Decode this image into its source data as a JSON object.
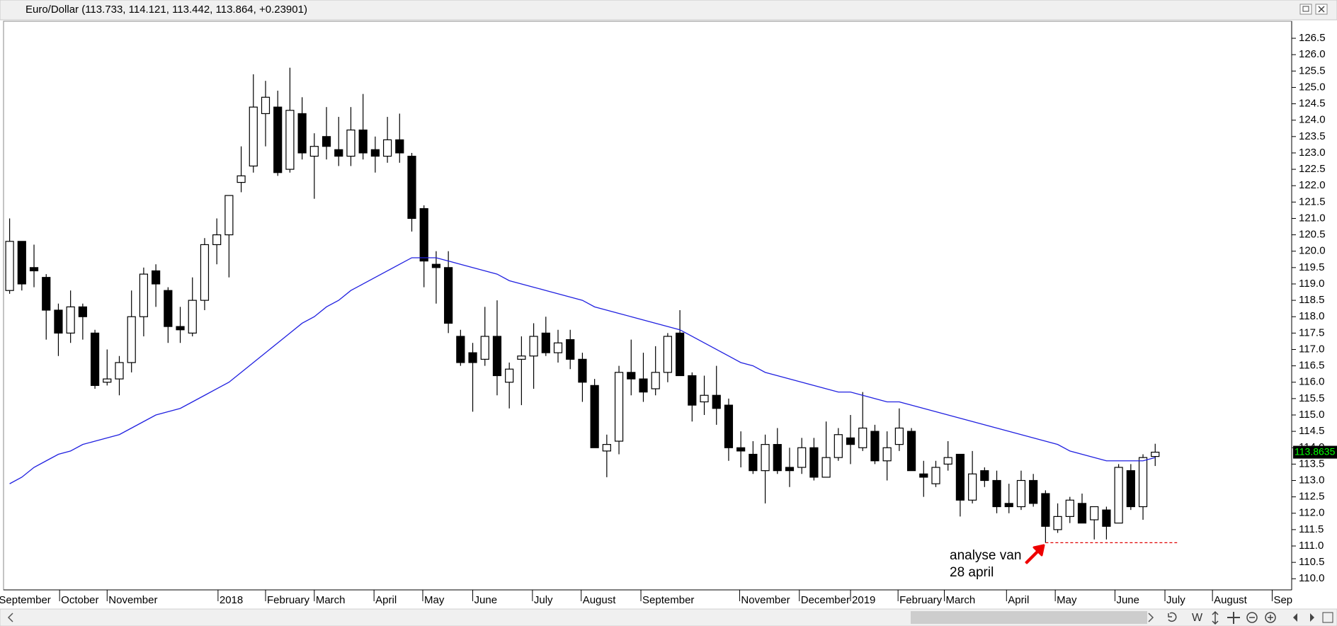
{
  "chart_data": {
    "type": "candlestick",
    "title": "Euro/Dollar (113.733, 114.121, 113.442, 113.864, +0.23901)",
    "open": [
      118.8,
      120.3,
      119.5,
      119.2,
      118.2,
      117.5,
      118.3,
      117.5,
      116.0,
      116.1,
      116.6,
      118.0,
      119.4,
      118.8,
      117.7,
      117.5,
      118.5,
      120.2,
      120.5,
      122.1,
      122.6,
      124.2,
      124.4,
      122.5,
      124.2,
      122.9,
      123.5,
      123.1,
      122.9,
      123.7,
      123.1,
      122.9,
      123.4,
      122.9,
      121.3,
      119.6,
      119.5,
      117.4,
      116.9,
      116.7,
      117.4,
      116.0,
      116.7,
      116.8,
      117.5,
      116.9,
      117.3,
      116.7,
      115.9,
      113.9,
      114.2,
      116.3,
      116.1,
      115.8,
      116.3,
      117.5,
      116.2,
      115.4,
      115.6,
      115.3,
      114.0,
      113.8,
      113.3,
      114.1,
      113.4,
      113.4,
      114.0,
      113.1,
      113.7,
      114.3,
      114.0,
      114.5,
      113.6,
      114.1,
      114.5,
      113.2,
      112.9,
      113.5,
      113.8,
      112.4,
      113.3,
      113.0,
      112.3,
      112.2,
      113.0,
      112.6,
      111.5,
      111.9,
      112.3,
      111.8,
      112.1,
      111.7,
      113.3,
      112.2,
      113.733
    ],
    "high": [
      121.0,
      120.3,
      120.2,
      119.3,
      118.4,
      118.8,
      118.4,
      117.6,
      117.0,
      116.8,
      118.8,
      119.5,
      119.6,
      118.9,
      118.3,
      119.2,
      120.4,
      121.0,
      121.7,
      123.2,
      125.4,
      125.2,
      124.9,
      125.6,
      124.7,
      123.6,
      124.4,
      124.1,
      124.4,
      124.8,
      123.5,
      124.1,
      124.2,
      123.0,
      121.4,
      120.0,
      120.0,
      117.6,
      117.2,
      118.3,
      118.5,
      116.6,
      117.4,
      117.8,
      118.0,
      117.6,
      117.6,
      116.9,
      116.1,
      114.4,
      116.5,
      117.3,
      116.9,
      117.1,
      117.5,
      118.2,
      116.3,
      116.2,
      116.5,
      115.5,
      114.5,
      114.2,
      114.4,
      114.6,
      114.0,
      114.3,
      114.3,
      114.8,
      114.6,
      115.0,
      115.7,
      114.7,
      114.5,
      115.2,
      114.6,
      113.6,
      113.6,
      114.2,
      113.8,
      113.9,
      113.4,
      113.3,
      112.9,
      113.3,
      113.2,
      112.7,
      112.3,
      112.5,
      112.6,
      112.2,
      112.2,
      113.5,
      113.5,
      113.8,
      114.121
    ],
    "low": [
      118.7,
      118.8,
      118.9,
      117.3,
      116.8,
      117.2,
      117.3,
      115.8,
      115.9,
      115.6,
      116.3,
      117.4,
      118.3,
      117.2,
      117.2,
      117.4,
      118.2,
      119.6,
      119.2,
      121.8,
      122.4,
      123.2,
      122.3,
      122.4,
      122.8,
      121.6,
      122.8,
      122.6,
      122.6,
      122.8,
      122.4,
      122.7,
      122.7,
      120.6,
      118.9,
      118.4,
      117.5,
      116.5,
      115.1,
      116.5,
      115.6,
      115.2,
      115.3,
      115.8,
      116.8,
      116.6,
      116.4,
      115.4,
      114.0,
      113.1,
      113.8,
      115.6,
      115.4,
      115.6,
      116.0,
      116.2,
      114.8,
      115.0,
      114.7,
      113.6,
      113.4,
      113.2,
      112.3,
      113.2,
      112.8,
      113.2,
      113.0,
      113.1,
      113.6,
      113.5,
      113.9,
      113.5,
      113.0,
      113.9,
      113.3,
      112.5,
      112.8,
      113.3,
      111.9,
      112.3,
      112.8,
      112.0,
      112.0,
      112.1,
      112.2,
      111.1,
      111.4,
      111.7,
      111.7,
      111.2,
      111.2,
      111.7,
      112.1,
      111.8,
      113.442
    ],
    "close": [
      120.3,
      119.0,
      119.4,
      118.2,
      117.5,
      118.3,
      118.0,
      115.9,
      116.1,
      116.6,
      118.0,
      119.3,
      119.0,
      117.7,
      117.6,
      118.5,
      120.2,
      120.5,
      121.7,
      122.3,
      124.4,
      124.7,
      122.4,
      124.3,
      123.0,
      123.2,
      123.2,
      122.9,
      123.7,
      123.0,
      122.9,
      123.4,
      123.0,
      121.0,
      119.7,
      119.5,
      117.8,
      116.6,
      116.6,
      117.4,
      116.2,
      116.4,
      116.8,
      117.4,
      116.9,
      117.2,
      116.7,
      116.0,
      114.0,
      114.1,
      116.3,
      116.1,
      115.7,
      116.3,
      117.4,
      116.2,
      115.3,
      115.6,
      115.2,
      114.0,
      113.9,
      113.3,
      114.1,
      113.3,
      113.3,
      114.0,
      113.1,
      113.7,
      114.4,
      114.1,
      114.6,
      113.6,
      114.0,
      114.6,
      113.3,
      113.1,
      113.4,
      113.7,
      112.4,
      113.2,
      113.0,
      112.2,
      112.2,
      113.0,
      112.3,
      111.6,
      111.9,
      112.4,
      111.7,
      112.2,
      111.6,
      113.4,
      112.2,
      113.7,
      113.864
    ],
    "up_color": "#ffffff",
    "down_color": "#000000",
    "moving_average": {
      "color": "#2020e0",
      "values": [
        112.9,
        113.1,
        113.4,
        113.6,
        113.8,
        113.9,
        114.1,
        114.2,
        114.3,
        114.4,
        114.6,
        114.8,
        115.0,
        115.1,
        115.2,
        115.4,
        115.6,
        115.8,
        116.0,
        116.3,
        116.6,
        116.9,
        117.2,
        117.5,
        117.8,
        118.0,
        118.3,
        118.5,
        118.8,
        119.0,
        119.2,
        119.4,
        119.6,
        119.8,
        119.8,
        119.8,
        119.7,
        119.6,
        119.5,
        119.4,
        119.3,
        119.1,
        119.0,
        118.9,
        118.8,
        118.7,
        118.6,
        118.5,
        118.3,
        118.2,
        118.1,
        118.0,
        117.9,
        117.8,
        117.7,
        117.6,
        117.4,
        117.2,
        117.0,
        116.8,
        116.6,
        116.5,
        116.3,
        116.2,
        116.1,
        116.0,
        115.9,
        115.8,
        115.7,
        115.7,
        115.6,
        115.5,
        115.4,
        115.4,
        115.3,
        115.2,
        115.1,
        115.0,
        114.9,
        114.8,
        114.7,
        114.6,
        114.5,
        114.4,
        114.3,
        114.2,
        114.1,
        113.9,
        113.8,
        113.7,
        113.6,
        113.6,
        113.6,
        113.6,
        113.7
      ]
    },
    "xlim": [
      0.5,
      106.2
    ],
    "xticks": [
      {
        "value": 0,
        "label": "September"
      },
      {
        "value": 5.1,
        "label": "October"
      },
      {
        "value": 9.0,
        "label": "November"
      },
      {
        "value": 18.1,
        "label": "2018"
      },
      {
        "value": 22.0,
        "label": "February"
      },
      {
        "value": 26.0,
        "label": "March"
      },
      {
        "value": 30.9,
        "label": "April"
      },
      {
        "value": 34.9,
        "label": "May"
      },
      {
        "value": 39.0,
        "label": "June"
      },
      {
        "value": 43.9,
        "label": "July"
      },
      {
        "value": 47.9,
        "label": "August"
      },
      {
        "value": 52.8,
        "label": "September"
      },
      {
        "value": 60.9,
        "label": "November"
      },
      {
        "value": 65.8,
        "label": "December"
      },
      {
        "value": 70.0,
        "label": "2019"
      },
      {
        "value": 73.9,
        "label": "February"
      },
      {
        "value": 77.7,
        "label": "March"
      },
      {
        "value": 82.8,
        "label": "April"
      },
      {
        "value": 86.8,
        "label": "May"
      },
      {
        "value": 91.7,
        "label": "June"
      },
      {
        "value": 95.8,
        "label": "July"
      },
      {
        "value": 99.7,
        "label": "August"
      },
      {
        "value": 104.6,
        "label": "Sep"
      }
    ],
    "ylim": [
      109.66,
      127.02
    ],
    "yticks": [
      {
        "value": 110,
        "label": "110.0"
      },
      110.5,
      {
        "value": 111,
        "label": "111.0"
      },
      111.5,
      {
        "value": 112,
        "label": "112.0"
      },
      112.5,
      {
        "value": 113,
        "label": "113.0"
      },
      113.5,
      {
        "value": 114,
        "label": "114.0"
      },
      114.5,
      {
        "value": 115,
        "label": "115.0"
      },
      115.5,
      {
        "value": 116,
        "label": "116.0"
      },
      116.5,
      {
        "value": 117,
        "label": "117.0"
      },
      117.5,
      {
        "value": 118,
        "label": "118.0"
      },
      118.5,
      {
        "value": 119,
        "label": "119.0"
      },
      119.5,
      {
        "value": 120,
        "label": "120.0"
      },
      120.5,
      {
        "value": 121,
        "label": "121.0"
      },
      121.5,
      {
        "value": 122,
        "label": "122.0"
      },
      122.5,
      {
        "value": 123,
        "label": "123.0"
      },
      123.5,
      {
        "value": 124,
        "label": "124.0"
      },
      124.5,
      {
        "value": 125,
        "label": "125.0"
      },
      125.5,
      {
        "value": 126,
        "label": "126.0"
      },
      126.5
    ],
    "last_price": {
      "value": 113.8635,
      "label": "113.8635",
      "color": "#00ff00"
    },
    "support_line": {
      "value": 111.1,
      "color": "#e00000"
    },
    "annotation": [
      "analyse van",
      "28 april"
    ],
    "toolbar_label": "W"
  }
}
